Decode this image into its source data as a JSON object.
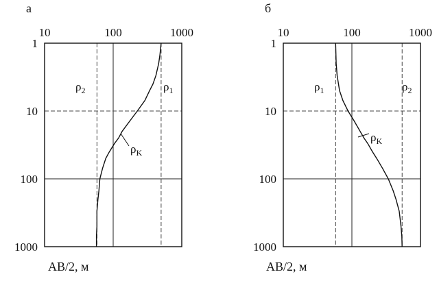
{
  "chart_data": [
    {
      "type": "line",
      "panel_label": "а",
      "xscale": "log",
      "yscale": "log",
      "yinverted": true,
      "xlim": [
        10,
        1000
      ],
      "ylim": [
        1,
        1000
      ],
      "x_ticks": [
        "10",
        "100",
        "1000"
      ],
      "y_ticks": [
        "1",
        "10",
        "100",
        "1000"
      ],
      "ylabel": "AB/2, м",
      "grid": true,
      "series_labels": {
        "rho2": "ρ",
        "rho2_sub": "2",
        "rho1": "ρ",
        "rho1_sub": "1",
        "rhok": "ρ",
        "rhok_sub": "K"
      },
      "reference_lines": {
        "rho2": 58,
        "rho1": 500
      },
      "curve": {
        "ab2": [
          1,
          1.5,
          2,
          3,
          4,
          5,
          7,
          10,
          14,
          20,
          25,
          30,
          40,
          50,
          70,
          100,
          150,
          200,
          300,
          500,
          700,
          1000
        ],
        "rho_k": [
          500,
          480,
          460,
          420,
          380,
          340,
          290,
          225,
          175,
          135,
          120,
          105,
          88,
          78,
          70,
          64,
          62,
          60,
          58,
          58,
          57,
          57
        ]
      }
    },
    {
      "type": "line",
      "panel_label": "б",
      "xscale": "log",
      "yscale": "log",
      "yinverted": true,
      "xlim": [
        10,
        1000
      ],
      "ylim": [
        1,
        1000
      ],
      "x_ticks": [
        "10",
        "100",
        "1000"
      ],
      "y_ticks": [
        "1",
        "10",
        "100",
        "1000"
      ],
      "ylabel": "AB/2, м",
      "grid": true,
      "series_labels": {
        "rho1": "ρ",
        "rho1_sub": "1",
        "rho2": "ρ",
        "rho2_sub": "2",
        "rhok": "ρ",
        "rhok_sub": "K"
      },
      "reference_lines": {
        "rho1": 58,
        "rho2": 540
      },
      "curve": {
        "ab2": [
          1,
          2,
          3,
          5,
          7,
          10,
          14,
          20,
          25,
          30,
          40,
          50,
          70,
          100,
          150,
          200,
          300,
          500,
          700,
          1000
        ],
        "rho_k": [
          58,
          59,
          61,
          66,
          74,
          88,
          108,
          132,
          150,
          170,
          200,
          230,
          280,
          340,
          400,
          440,
          490,
          520,
          535,
          540
        ]
      }
    }
  ]
}
